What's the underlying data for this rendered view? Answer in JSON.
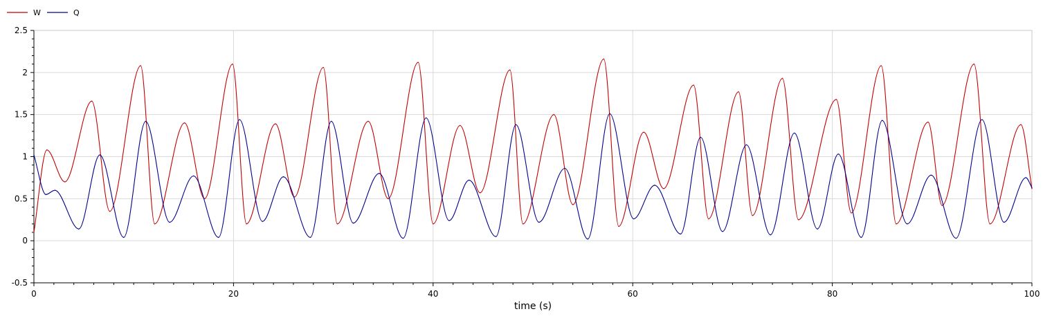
{
  "chart_data": {
    "type": "line",
    "title": "",
    "xlabel": "time (s)",
    "ylabel": "",
    "xlim": [
      0,
      100
    ],
    "ylim": [
      -0.5,
      2.5
    ],
    "grid": true,
    "legend_position": "top-left",
    "x_ticks": [
      0,
      20,
      40,
      60,
      80,
      100
    ],
    "x_tick_labels": [
      "0",
      "20",
      "40",
      "60",
      "80",
      "100"
    ],
    "y_ticks": [
      -0.5,
      0,
      0.5,
      1,
      1.5,
      2,
      2.5
    ],
    "y_tick_labels": [
      "-0.5",
      "0",
      "0.5",
      "1",
      "1.5",
      "2",
      "2.5"
    ],
    "series": [
      {
        "name": "W",
        "color": "#c00000",
        "x": [
          0,
          1.3,
          3.1,
          5.8,
          7.6,
          10.7,
          12.1,
          15.1,
          17.1,
          19.9,
          21.3,
          24.2,
          26.1,
          29.0,
          30.4,
          33.5,
          35.5,
          38.5,
          40.0,
          42.7,
          44.7,
          47.7,
          49.0,
          52.1,
          54.0,
          57.1,
          58.6,
          61.1,
          63.1,
          66.1,
          67.6,
          70.6,
          72.0,
          75.0,
          76.6,
          80.4,
          81.9,
          84.9,
          86.4,
          89.6,
          91.0,
          94.2,
          95.8,
          98.9,
          100
        ],
        "y": [
          0.1,
          1.08,
          0.7,
          1.66,
          0.35,
          2.08,
          0.2,
          1.4,
          0.5,
          2.1,
          0.2,
          1.39,
          0.52,
          2.06,
          0.2,
          1.42,
          0.5,
          2.12,
          0.2,
          1.37,
          0.57,
          2.03,
          0.2,
          1.5,
          0.43,
          2.16,
          0.17,
          1.29,
          0.62,
          1.85,
          0.26,
          1.77,
          0.3,
          1.93,
          0.25,
          1.68,
          0.33,
          2.08,
          0.2,
          1.41,
          0.42,
          2.1,
          0.2,
          1.38,
          0.62
        ]
      },
      {
        "name": "Q",
        "color": "#00008b",
        "x": [
          0,
          1.2,
          2.1,
          4.5,
          6.6,
          9.0,
          11.2,
          13.6,
          16.0,
          18.5,
          20.6,
          22.9,
          25.0,
          27.7,
          29.8,
          32.0,
          34.6,
          37.0,
          39.3,
          41.6,
          43.6,
          46.3,
          48.3,
          50.6,
          53.2,
          55.5,
          57.7,
          60.1,
          62.2,
          64.8,
          66.8,
          69.0,
          71.4,
          73.8,
          76.2,
          78.5,
          80.6,
          82.9,
          85.0,
          87.5,
          89.9,
          92.4,
          95.0,
          97.2,
          99.4,
          100
        ],
        "y": [
          1.02,
          0.55,
          0.6,
          0.14,
          1.02,
          0.04,
          1.42,
          0.22,
          0.77,
          0.04,
          1.44,
          0.23,
          0.76,
          0.04,
          1.42,
          0.21,
          0.8,
          0.03,
          1.46,
          0.24,
          0.72,
          0.05,
          1.38,
          0.22,
          0.86,
          0.02,
          1.51,
          0.26,
          0.66,
          0.08,
          1.23,
          0.11,
          1.14,
          0.07,
          1.28,
          0.14,
          1.03,
          0.04,
          1.43,
          0.2,
          0.78,
          0.03,
          1.44,
          0.22,
          0.75,
          0.63
        ]
      }
    ]
  }
}
